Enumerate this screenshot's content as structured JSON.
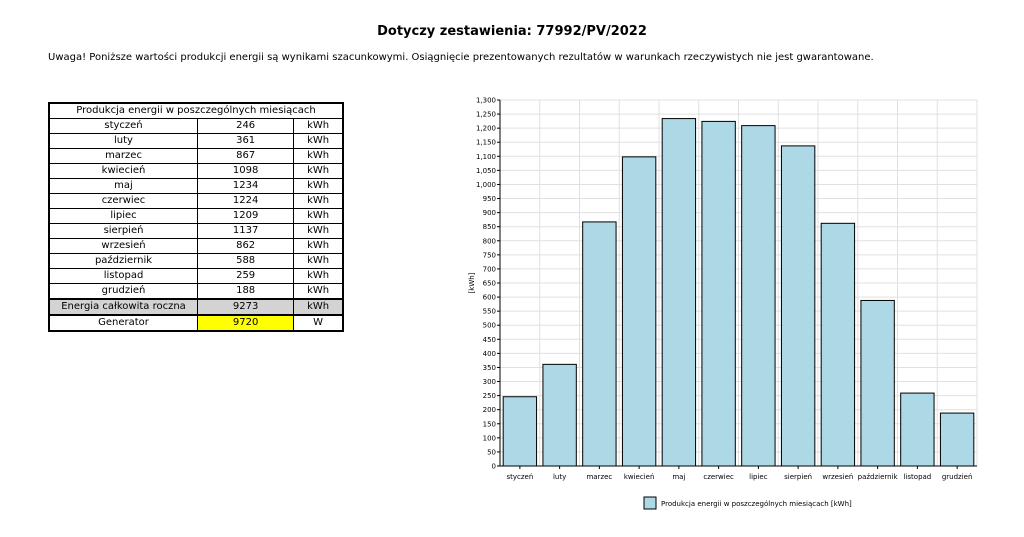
{
  "header": {
    "title": "Dotyczy zestawienia: 77992/PV/2022"
  },
  "note": "Uwaga! Poniższe wartości produkcji energii są wynikami szacunkowymi. Osiągnięcie prezentowanych rezultatów w warunkach rzeczywistych nie jest gwarantowane.",
  "table": {
    "header": "Produkcja energii w poszczególnych miesiącach",
    "rows": [
      {
        "label": "styczeń",
        "value": "246",
        "unit": "kWh"
      },
      {
        "label": "luty",
        "value": "361",
        "unit": "kWh"
      },
      {
        "label": "marzec",
        "value": "867",
        "unit": "kWh"
      },
      {
        "label": "kwiecień",
        "value": "1098",
        "unit": "kWh"
      },
      {
        "label": "maj",
        "value": "1234",
        "unit": "kWh"
      },
      {
        "label": "czerwiec",
        "value": "1224",
        "unit": "kWh"
      },
      {
        "label": "lipiec",
        "value": "1209",
        "unit": "kWh"
      },
      {
        "label": "sierpień",
        "value": "1137",
        "unit": "kWh"
      },
      {
        "label": "wrzesień",
        "value": "862",
        "unit": "kWh"
      },
      {
        "label": "październik",
        "value": "588",
        "unit": "kWh"
      },
      {
        "label": "listopad",
        "value": "259",
        "unit": "kWh"
      },
      {
        "label": "grudzień",
        "value": "188",
        "unit": "kWh"
      }
    ],
    "total": {
      "label": "Energia całkowita roczna",
      "value": "9273",
      "unit": "kWh"
    },
    "generator": {
      "label": "Generator",
      "value": "9720",
      "unit": "W"
    }
  },
  "chart_data": {
    "type": "bar",
    "categories": [
      "styczeń",
      "luty",
      "marzec",
      "kwiecień",
      "maj",
      "czerwiec",
      "lipiec",
      "sierpień",
      "wrzesień",
      "październik",
      "listopad",
      "grudzień"
    ],
    "values": [
      246,
      361,
      867,
      1098,
      1234,
      1224,
      1209,
      1137,
      862,
      588,
      259,
      188
    ],
    "ylabel": "[kWh]",
    "ylim": [
      0,
      1300
    ],
    "ytick_step": 50,
    "grid": true,
    "legend": "Produkcja energii w poszczególnych miesiącach [kWh]",
    "legend_position": "bottom",
    "colors": {
      "bar": "#add8e6",
      "bar_stroke": "#000000",
      "grid": "#e0e0e0"
    }
  }
}
